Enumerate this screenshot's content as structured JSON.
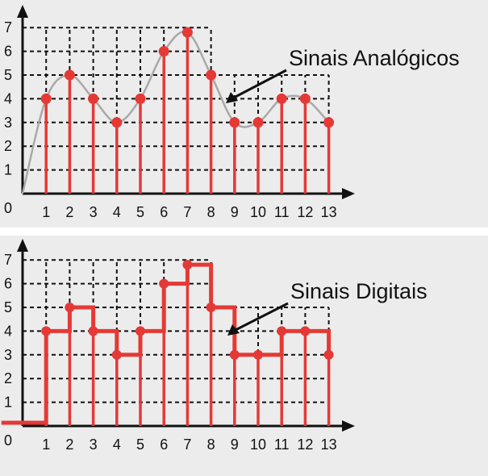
{
  "chart_data": [
    {
      "type": "stem",
      "annotation": "Sinais Analógicos",
      "x_ticks": [
        "1",
        "2",
        "3",
        "4",
        "5",
        "6",
        "7",
        "8",
        "9",
        "10",
        "11",
        "12",
        "13"
      ],
      "y_ticks": [
        "1",
        "2",
        "3",
        "4",
        "5",
        "6",
        "7"
      ],
      "origin_label": "0",
      "x": [
        1,
        2,
        3,
        4,
        5,
        6,
        7,
        8,
        9,
        10,
        11,
        12,
        13
      ],
      "values": [
        4,
        5,
        4,
        3,
        4,
        6,
        6.8,
        5,
        3,
        3,
        4,
        4,
        3
      ],
      "xlim": [
        0,
        13.8
      ],
      "ylim": [
        0,
        7
      ],
      "grid": "dashed",
      "has_curve": true,
      "colors": {
        "stem": "#e53935",
        "curve": "#a9a9a9",
        "axis": "#111111",
        "grid": "#111111"
      }
    },
    {
      "type": "step",
      "annotation": "Sinais Digitais",
      "x_ticks": [
        "1",
        "2",
        "3",
        "4",
        "5",
        "6",
        "7",
        "8",
        "9",
        "10",
        "11",
        "12",
        "13"
      ],
      "y_ticks": [
        "1",
        "2",
        "3",
        "4",
        "5",
        "6",
        "7"
      ],
      "origin_label": "0",
      "x": [
        1,
        2,
        3,
        4,
        5,
        6,
        7,
        8,
        9,
        10,
        11,
        12,
        13
      ],
      "values": [
        4,
        5,
        4,
        3,
        4,
        6,
        6.8,
        5,
        3,
        3,
        4,
        4,
        3
      ],
      "xlim": [
        0,
        13.8
      ],
      "ylim": [
        0,
        7
      ],
      "grid": "dashed",
      "colors": {
        "stem": "#e53935",
        "axis": "#111111",
        "grid": "#111111"
      }
    }
  ]
}
